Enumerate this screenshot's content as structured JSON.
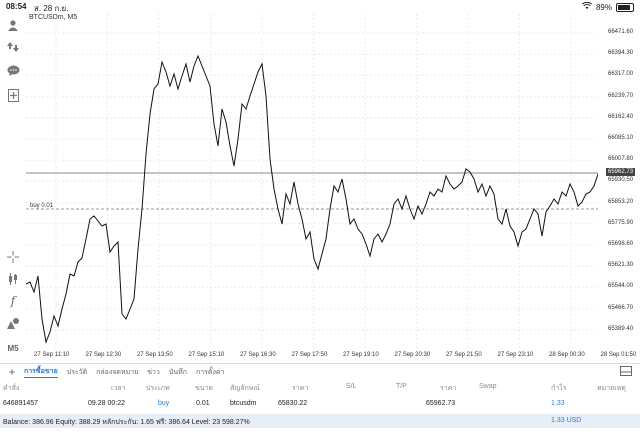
{
  "status": {
    "time": "08:54",
    "date": "ส. 28 ก.ย.",
    "battery": "89%",
    "battery_level": 0.89
  },
  "chart": {
    "symbol": "BTCUSDm, M5",
    "position_label": "buy 0.01",
    "current_price": "65962.73",
    "y_ticks": [
      "66471.60",
      "66394.30",
      "66317.00",
      "66239.70",
      "66162.40",
      "66085.10",
      "66007.80",
      "65930.50",
      "65853.20",
      "65775.90",
      "65698.60",
      "65621.30",
      "65544.00",
      "65466.70",
      "65389.40"
    ],
    "x_ticks": [
      "27 Sep 11:10",
      "27 Sep 12:30",
      "27 Sep 13:50",
      "27 Sep 15:10",
      "27 Sep 16:30",
      "27 Sep 17:50",
      "27 Sep 19:10",
      "27 Sep 20:30",
      "27 Sep 21:50",
      "27 Sep 23:10",
      "28 Sep 00:30",
      "28 Sep 01:50"
    ],
    "tools": [
      "person-icon",
      "trade-arrows-icon",
      "chat-icon",
      "add-document-icon",
      "crosshair-icon",
      "candlestick-icon",
      "function-icon",
      "objects-icon",
      "period-icon"
    ],
    "tool_labels": {
      "period": "M5"
    }
  },
  "tabs": [
    "การซื้อขาย",
    "ประวัติ",
    "กล่องจดหมาย",
    "ข่าว",
    "บันทึก",
    "การตั้งค่า"
  ],
  "table": {
    "headers": {
      "ticket": "คำสั่ง",
      "time": "เวลา",
      "type": "ประเภท",
      "volume": "ขนาด",
      "symbol": "สัญลักษณ์",
      "price": "ราคา",
      "sl": "S/L",
      "tp": "T/P",
      "price2": "ราคา",
      "swap": "Swap",
      "profit": "กำไร",
      "comment": "หมายเหตุ"
    },
    "row": {
      "ticket": "646891457",
      "time": "09.28 00:22",
      "type": "buy",
      "volume": "0.01",
      "symbol": "btcusdm",
      "price": "65830.22",
      "price2": "65962.73",
      "profit": "1.33"
    }
  },
  "balance": {
    "text": "Balance: 386.96 Equity: 388.29 หลักประกัน: 1.65 ฟรี: 386.64 Level: 23 598.27%",
    "profit": "1.33  USD"
  }
}
